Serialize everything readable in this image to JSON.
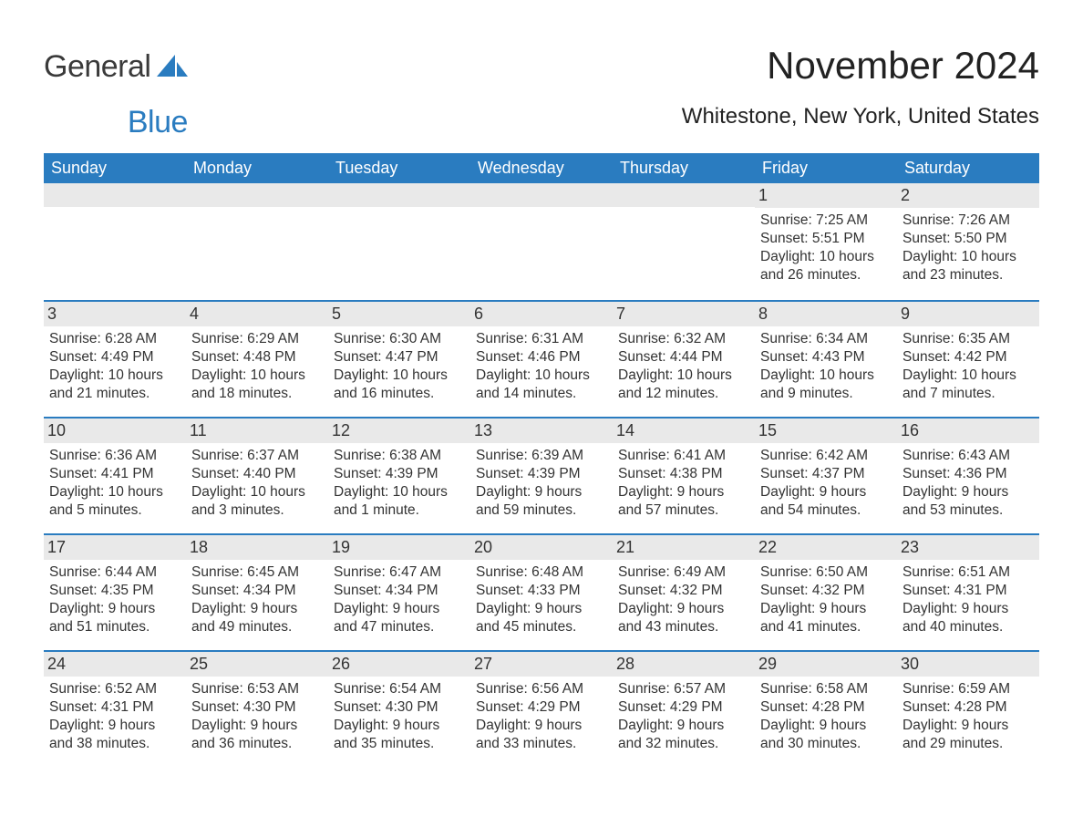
{
  "logo": {
    "text1": "General",
    "text2": "Blue",
    "sail_color": "#2a7cc0"
  },
  "title": "November 2024",
  "location": "Whitestone, New York, United States",
  "header_bg": "#2a7cc0",
  "header_fg": "#ffffff",
  "daynum_bg": "#e9e9e9",
  "divider_color": "#2a7cc0",
  "text_color": "#333333",
  "days_of_week": [
    "Sunday",
    "Monday",
    "Tuesday",
    "Wednesday",
    "Thursday",
    "Friday",
    "Saturday"
  ],
  "weeks": [
    [
      {
        "blank": true
      },
      {
        "blank": true
      },
      {
        "blank": true
      },
      {
        "blank": true
      },
      {
        "blank": true
      },
      {
        "n": "1",
        "sunrise": "Sunrise: 7:25 AM",
        "sunset": "Sunset: 5:51 PM",
        "daylight": "Daylight: 10 hours and 26 minutes."
      },
      {
        "n": "2",
        "sunrise": "Sunrise: 7:26 AM",
        "sunset": "Sunset: 5:50 PM",
        "daylight": "Daylight: 10 hours and 23 minutes."
      }
    ],
    [
      {
        "n": "3",
        "sunrise": "Sunrise: 6:28 AM",
        "sunset": "Sunset: 4:49 PM",
        "daylight": "Daylight: 10 hours and 21 minutes."
      },
      {
        "n": "4",
        "sunrise": "Sunrise: 6:29 AM",
        "sunset": "Sunset: 4:48 PM",
        "daylight": "Daylight: 10 hours and 18 minutes."
      },
      {
        "n": "5",
        "sunrise": "Sunrise: 6:30 AM",
        "sunset": "Sunset: 4:47 PM",
        "daylight": "Daylight: 10 hours and 16 minutes."
      },
      {
        "n": "6",
        "sunrise": "Sunrise: 6:31 AM",
        "sunset": "Sunset: 4:46 PM",
        "daylight": "Daylight: 10 hours and 14 minutes."
      },
      {
        "n": "7",
        "sunrise": "Sunrise: 6:32 AM",
        "sunset": "Sunset: 4:44 PM",
        "daylight": "Daylight: 10 hours and 12 minutes."
      },
      {
        "n": "8",
        "sunrise": "Sunrise: 6:34 AM",
        "sunset": "Sunset: 4:43 PM",
        "daylight": "Daylight: 10 hours and 9 minutes."
      },
      {
        "n": "9",
        "sunrise": "Sunrise: 6:35 AM",
        "sunset": "Sunset: 4:42 PM",
        "daylight": "Daylight: 10 hours and 7 minutes."
      }
    ],
    [
      {
        "n": "10",
        "sunrise": "Sunrise: 6:36 AM",
        "sunset": "Sunset: 4:41 PM",
        "daylight": "Daylight: 10 hours and 5 minutes."
      },
      {
        "n": "11",
        "sunrise": "Sunrise: 6:37 AM",
        "sunset": "Sunset: 4:40 PM",
        "daylight": "Daylight: 10 hours and 3 minutes."
      },
      {
        "n": "12",
        "sunrise": "Sunrise: 6:38 AM",
        "sunset": "Sunset: 4:39 PM",
        "daylight": "Daylight: 10 hours and 1 minute."
      },
      {
        "n": "13",
        "sunrise": "Sunrise: 6:39 AM",
        "sunset": "Sunset: 4:39 PM",
        "daylight": "Daylight: 9 hours and 59 minutes."
      },
      {
        "n": "14",
        "sunrise": "Sunrise: 6:41 AM",
        "sunset": "Sunset: 4:38 PM",
        "daylight": "Daylight: 9 hours and 57 minutes."
      },
      {
        "n": "15",
        "sunrise": "Sunrise: 6:42 AM",
        "sunset": "Sunset: 4:37 PM",
        "daylight": "Daylight: 9 hours and 54 minutes."
      },
      {
        "n": "16",
        "sunrise": "Sunrise: 6:43 AM",
        "sunset": "Sunset: 4:36 PM",
        "daylight": "Daylight: 9 hours and 53 minutes."
      }
    ],
    [
      {
        "n": "17",
        "sunrise": "Sunrise: 6:44 AM",
        "sunset": "Sunset: 4:35 PM",
        "daylight": "Daylight: 9 hours and 51 minutes."
      },
      {
        "n": "18",
        "sunrise": "Sunrise: 6:45 AM",
        "sunset": "Sunset: 4:34 PM",
        "daylight": "Daylight: 9 hours and 49 minutes."
      },
      {
        "n": "19",
        "sunrise": "Sunrise: 6:47 AM",
        "sunset": "Sunset: 4:34 PM",
        "daylight": "Daylight: 9 hours and 47 minutes."
      },
      {
        "n": "20",
        "sunrise": "Sunrise: 6:48 AM",
        "sunset": "Sunset: 4:33 PM",
        "daylight": "Daylight: 9 hours and 45 minutes."
      },
      {
        "n": "21",
        "sunrise": "Sunrise: 6:49 AM",
        "sunset": "Sunset: 4:32 PM",
        "daylight": "Daylight: 9 hours and 43 minutes."
      },
      {
        "n": "22",
        "sunrise": "Sunrise: 6:50 AM",
        "sunset": "Sunset: 4:32 PM",
        "daylight": "Daylight: 9 hours and 41 minutes."
      },
      {
        "n": "23",
        "sunrise": "Sunrise: 6:51 AM",
        "sunset": "Sunset: 4:31 PM",
        "daylight": "Daylight: 9 hours and 40 minutes."
      }
    ],
    [
      {
        "n": "24",
        "sunrise": "Sunrise: 6:52 AM",
        "sunset": "Sunset: 4:31 PM",
        "daylight": "Daylight: 9 hours and 38 minutes."
      },
      {
        "n": "25",
        "sunrise": "Sunrise: 6:53 AM",
        "sunset": "Sunset: 4:30 PM",
        "daylight": "Daylight: 9 hours and 36 minutes."
      },
      {
        "n": "26",
        "sunrise": "Sunrise: 6:54 AM",
        "sunset": "Sunset: 4:30 PM",
        "daylight": "Daylight: 9 hours and 35 minutes."
      },
      {
        "n": "27",
        "sunrise": "Sunrise: 6:56 AM",
        "sunset": "Sunset: 4:29 PM",
        "daylight": "Daylight: 9 hours and 33 minutes."
      },
      {
        "n": "28",
        "sunrise": "Sunrise: 6:57 AM",
        "sunset": "Sunset: 4:29 PM",
        "daylight": "Daylight: 9 hours and 32 minutes."
      },
      {
        "n": "29",
        "sunrise": "Sunrise: 6:58 AM",
        "sunset": "Sunset: 4:28 PM",
        "daylight": "Daylight: 9 hours and 30 minutes."
      },
      {
        "n": "30",
        "sunrise": "Sunrise: 6:59 AM",
        "sunset": "Sunset: 4:28 PM",
        "daylight": "Daylight: 9 hours and 29 minutes."
      }
    ]
  ]
}
